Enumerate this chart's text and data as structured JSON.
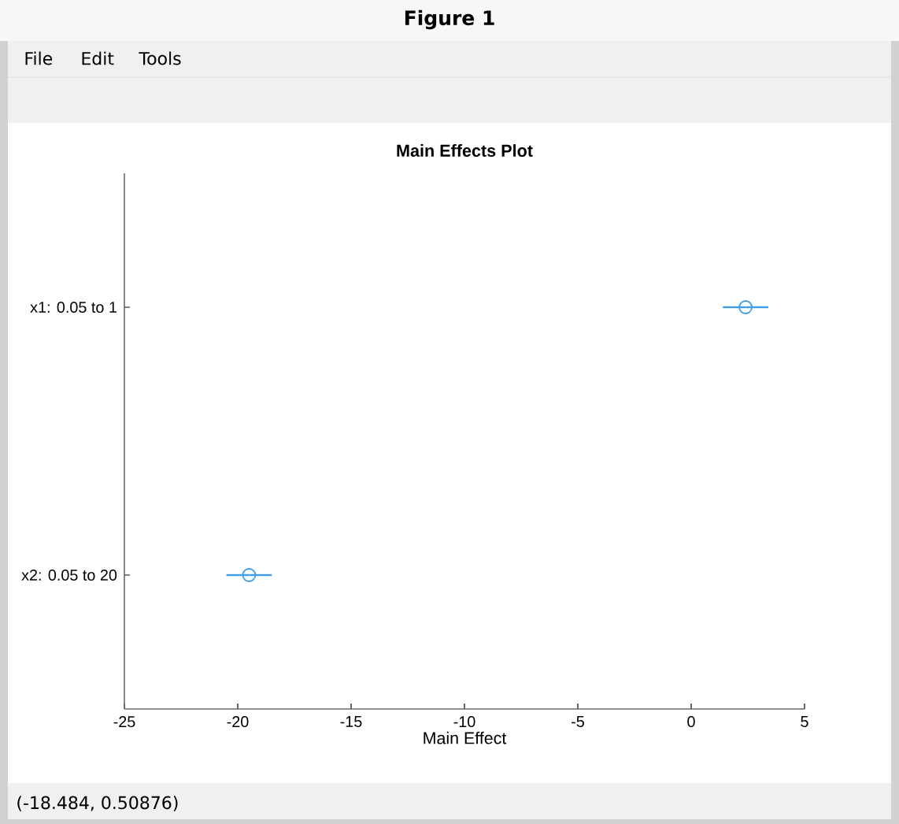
{
  "chart_data": {
    "type": "scatter",
    "title": "Main Effects Plot",
    "xlabel": "Main Effect",
    "orientation": "horizontal",
    "categories": [
      "x1: 0.05 to 1",
      "x2: 0.05 to 20"
    ],
    "values": [
      2.4,
      -19.5
    ],
    "errors": [
      1.0,
      1.0
    ],
    "color": "#3f9de8",
    "marker": "circle",
    "xlim": [
      -25,
      5
    ],
    "xticks": [
      -25,
      -20,
      -15,
      -10,
      -5,
      0,
      5
    ],
    "annotations": [
      "Figure 1",
      "File",
      "Edit",
      "Tools",
      "(-18.484, 0.50876)"
    ]
  }
}
